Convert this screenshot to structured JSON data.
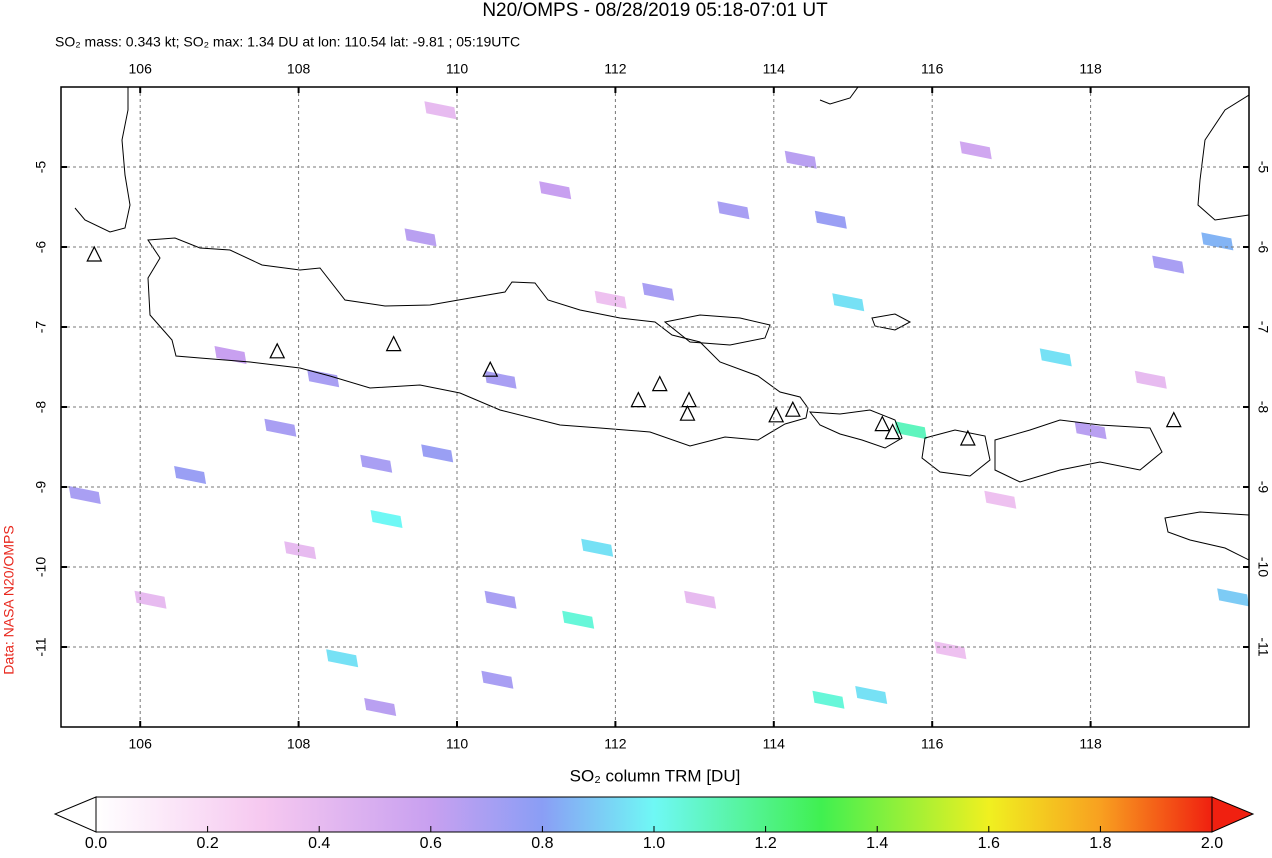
{
  "chart_data": {
    "type": "map",
    "title": "N20/OMPS - 08/28/2019 05:18-07:01 UT",
    "subtitle": "SO₂ mass: 0.343 kt; SO₂ max: 1.34 DU at lon: 110.54 lat: -9.81 ; 05:19UTC",
    "credit": "Data: NASA N20/OMPS",
    "xlim": [
      105,
      120
    ],
    "ylim": [
      -12,
      -4
    ],
    "xticks": [
      106,
      108,
      110,
      112,
      114,
      116,
      118
    ],
    "yticks": [
      -5,
      -6,
      -7,
      -8,
      -9,
      -10,
      -11
    ],
    "grid": true,
    "colorbar": {
      "label": "SO₂ column TRM [DU]",
      "clim": [
        0,
        2
      ],
      "ticks": [
        {
          "value": 0,
          "label": "0.0"
        },
        {
          "value": 0.2,
          "label": "0.2"
        },
        {
          "value": 0.4,
          "label": "0.4"
        },
        {
          "value": 0.6,
          "label": "0.6"
        },
        {
          "value": 0.8,
          "label": "0.8"
        },
        {
          "value": 1,
          "label": "1.0"
        },
        {
          "value": 1.2,
          "label": "1.2"
        },
        {
          "value": 1.4,
          "label": "1.4"
        },
        {
          "value": 1.6,
          "label": "1.6"
        },
        {
          "value": 1.8,
          "label": "1.8"
        },
        {
          "value": 2,
          "label": "2.0"
        }
      ]
    },
    "pixels": {
      "lon": [
        109.11,
        111.77,
        111.53,
        108.55,
        114.94,
        115.73,
        117.56,
        114.69,
        115.23,
        119.8,
        119.6,
        109.75,
        108.31,
        110.55,
        109.54,
        110.55,
        110.51,
        112.54,
        113.49,
        114.34,
        114.72,
        118.98,
        105.3,
        106.63,
        107.77,
        108.98,
        109.03,
        118.0,
        107.14,
        111.24,
        116.55,
        109.79,
        111.94,
        113.07,
        116.86,
        106.13,
        116.23,
        118.76,
        108.02
      ],
      "lat": [
        -9.4,
        -9.76,
        -10.66,
        -11.14,
        -6.69,
        -8.29,
        -7.38,
        -11.66,
        -11.6,
        -10.38,
        -5.93,
        -8.58,
        -7.64,
        -7.66,
        -5.88,
        -10.41,
        -11.41,
        -6.56,
        -5.54,
        -4.91,
        -5.66,
        -6.22,
        -9.1,
        -8.85,
        -8.26,
        -8.71,
        -11.75,
        -8.29,
        -7.35,
        -5.29,
        -4.79,
        -4.29,
        -6.66,
        -10.41,
        -9.16,
        -10.41,
        -11.04,
        -7.66,
        -9.79
      ],
      "values": [
        1.0,
        0.95,
        1.05,
        0.95,
        0.95,
        1.1,
        0.95,
        1.05,
        0.95,
        0.9,
        0.85,
        0.75,
        0.7,
        0.7,
        0.65,
        0.7,
        0.7,
        0.7,
        0.7,
        0.65,
        0.75,
        0.7,
        0.7,
        0.75,
        0.7,
        0.7,
        0.65,
        0.65,
        0.6,
        0.6,
        0.55,
        0.4,
        0.35,
        0.4,
        0.35,
        0.4,
        0.35,
        0.4,
        0.4
      ]
    },
    "volcanoes": {
      "lon": [
        107.73,
        109.2,
        110.42,
        112.29,
        112.56,
        112.93,
        112.91,
        114.03,
        114.24,
        115.37,
        115.5,
        116.45,
        119.05,
        105.42
      ],
      "lat": [
        -7.31,
        -7.22,
        -7.54,
        -7.92,
        -7.72,
        -7.92,
        -8.09,
        -8.11,
        -8.04,
        -8.22,
        -8.32,
        -8.4,
        -8.17,
        -6.1
      ]
    }
  }
}
